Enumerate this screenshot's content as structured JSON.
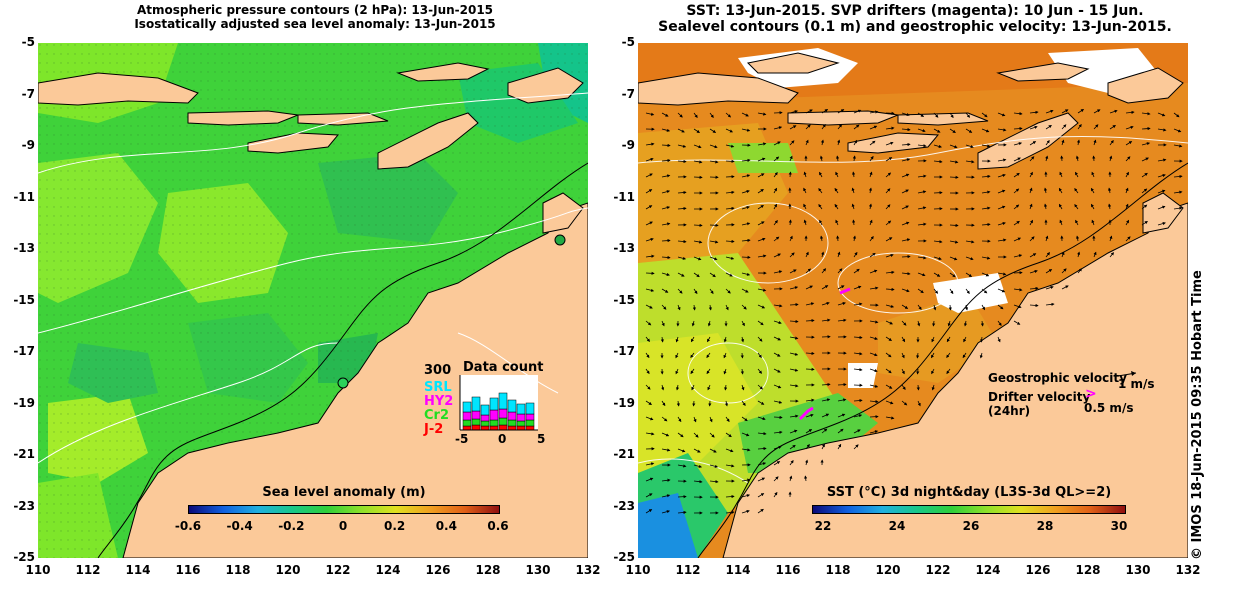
{
  "left_panel": {
    "title_line1": "Atmospheric pressure contours (2 hPa): 13-Jun-2015",
    "title_line2": "Isostatically adjusted sea level anomaly: 13-Jun-2015",
    "colorbar_title": "Sea level anomaly (m)",
    "colorbar_ticks": [
      "-0.6",
      "-0.4",
      "-0.2",
      "0",
      "0.2",
      "0.4",
      "0.6"
    ],
    "data_count": {
      "title": "Data count",
      "ymax_label": "300",
      "satellites": [
        {
          "name": "SRL",
          "color": "#00e5ff"
        },
        {
          "name": "HY2",
          "color": "#ff00ff"
        },
        {
          "name": "Cr2",
          "color": "#22dd22"
        },
        {
          "name": "J-2",
          "color": "#ff0000"
        }
      ],
      "x_ticks": [
        "-5",
        "0",
        "5"
      ]
    }
  },
  "right_panel": {
    "title_line1": "SST: 13-Jun-2015. SVP drifters (magenta): 10 Jun - 15 Jun.",
    "title_line2": "Sealevel contours (0.1 m) and geostrophic velocity: 13-Jun-2015.",
    "colorbar_title": "SST (°C) 3d night&day (L3S-3d QL>=2)",
    "colorbar_ticks": [
      "22",
      "24",
      "26",
      "28",
      "30"
    ],
    "legend": {
      "geostrophic_label": "Geostrophic velocity",
      "geostrophic_scale": "1 m/s",
      "drifter_label": "Drifter velocity",
      "drifter_sub": "(24hr)",
      "drifter_scale": "0.5 m/s"
    }
  },
  "axes": {
    "y_ticks": [
      "-5",
      "-7",
      "-9",
      "-11",
      "-13",
      "-15",
      "-17",
      "-19",
      "-21",
      "-23",
      "-25"
    ],
    "x_ticks": [
      "110",
      "112",
      "114",
      "116",
      "118",
      "120",
      "122",
      "124",
      "126",
      "128",
      "130",
      "132"
    ]
  },
  "credit": "© IMOS 18-Jun-2015 09:35 Hobart Time",
  "colors": {
    "land": "#fbc999",
    "no_data": "#ffffff",
    "ocean_left": "#3fd23a",
    "ocean_right": "#e68a1f"
  }
}
